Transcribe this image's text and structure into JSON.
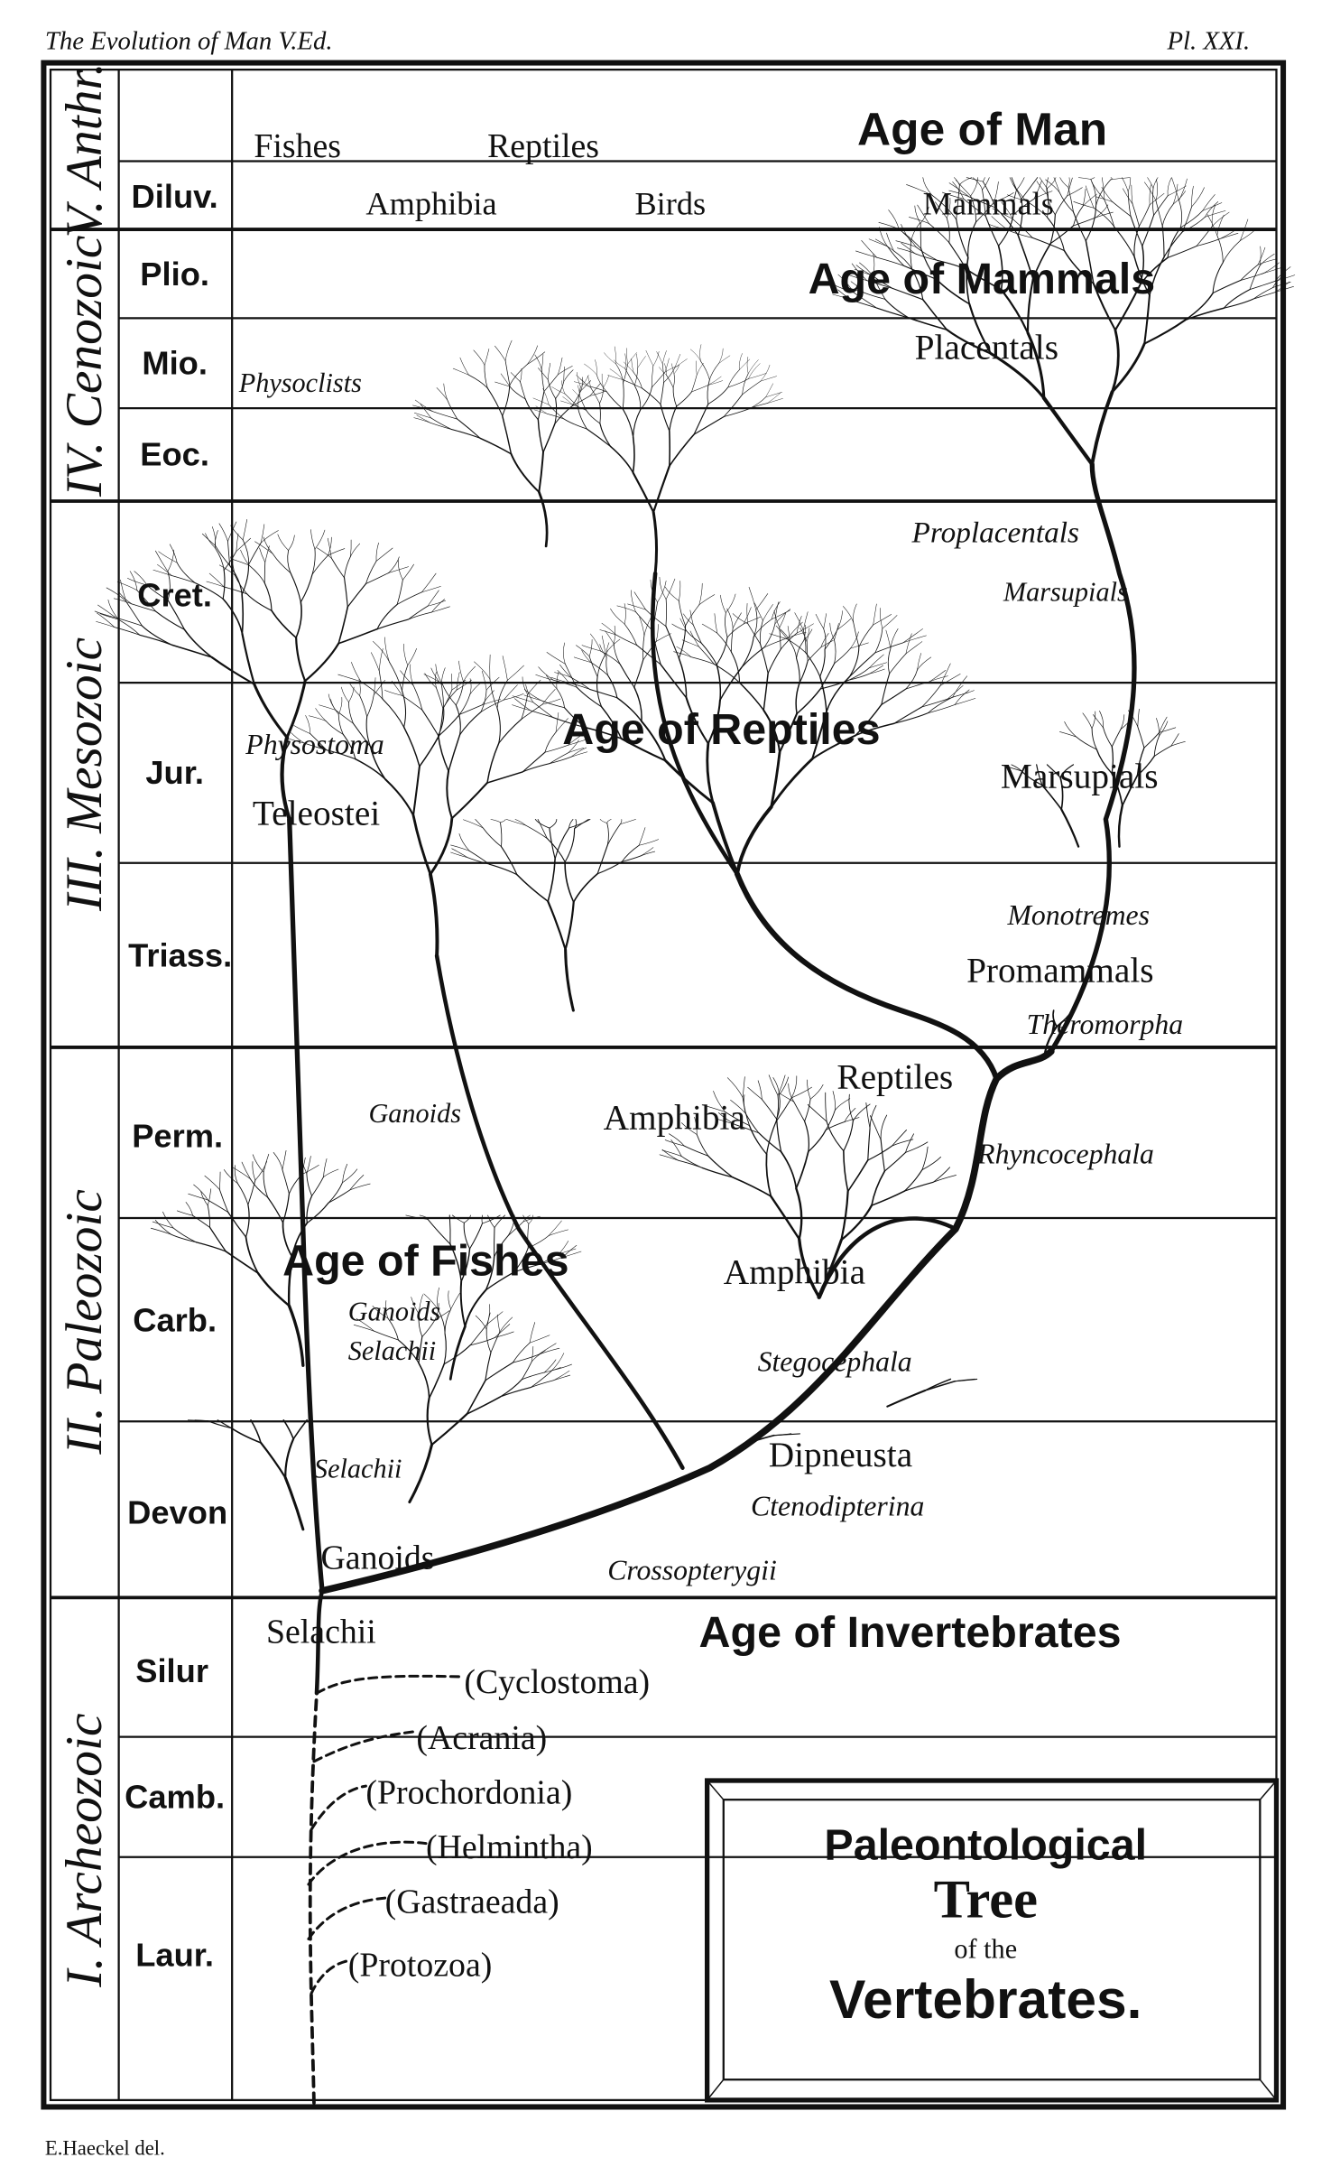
{
  "header": {
    "title": "The Evolution of Man V.Ed.",
    "plate": "Pl. XXI."
  },
  "footer": {
    "credit": "E.Haeckel del."
  },
  "eras": [
    "V. Anthr.",
    "IV. Cenozoic",
    "III. Mesozoic",
    "II. Paleozoic",
    "I. Archeozoic"
  ],
  "periods": [
    "Diluv.",
    "Plio.",
    "Mio.",
    "Eoc.",
    "Cret.",
    "Jur.",
    "Triass.",
    "Perm.",
    "Carb.",
    "Devon",
    "Silur",
    "Camb.",
    "Laur."
  ],
  "labels": {
    "fishes": "Fishes",
    "reptiles_top": "Reptiles",
    "age_of_man": "Age of Man",
    "amphibia_top": "Amphibia",
    "birds": "Birds",
    "mammals": "Mammals",
    "age_of_mammals": "Age of Mammals",
    "placentals": "Placentals",
    "physoclists": "Physoclists",
    "proplacentals": "Proplacentals",
    "marsupials_it": "Marsupials",
    "physostoma": "Physostoma",
    "teleostei": "Teleostei",
    "age_of_reptiles": "Age of Reptiles",
    "marsupials": "Marsupials",
    "monotremes": "Monotremes",
    "promammals": "Promammals",
    "theromorpha": "Theromorpha",
    "reptiles": "Reptiles",
    "rhyncocephala": "Rhyncocephala",
    "ganoids_perm": "Ganoids",
    "amphibia_perm": "Amphibia",
    "age_of_fishes": "Age of Fishes",
    "ganoids_carb": "Ganoids",
    "selachii_carb": "Selachii",
    "amphibia_carb": "Amphibia",
    "stegocephala": "Stegocephala",
    "dipneusta": "Dipneusta",
    "ctenodipterina": "Ctenodipterina",
    "selachii_devon": "Selachii",
    "ganoids_devon": "Ganoids",
    "crossopterygii": "Crossopterygii",
    "selachii_silur": "Selachii",
    "age_of_invertebrates": "Age of Invertebrates",
    "cyclostoma": "(Cyclostoma)",
    "acrania": "(Acrania)",
    "prochordonia": "(Prochordonia)",
    "helmintha": "(Helmintha)",
    "gastraeada": "(Gastraeada)",
    "protozoa": "(Protozoa)"
  },
  "title_box": {
    "line1": "Paleontological",
    "line2": "Tree",
    "line3": "of the",
    "line4": "Vertebrates."
  }
}
